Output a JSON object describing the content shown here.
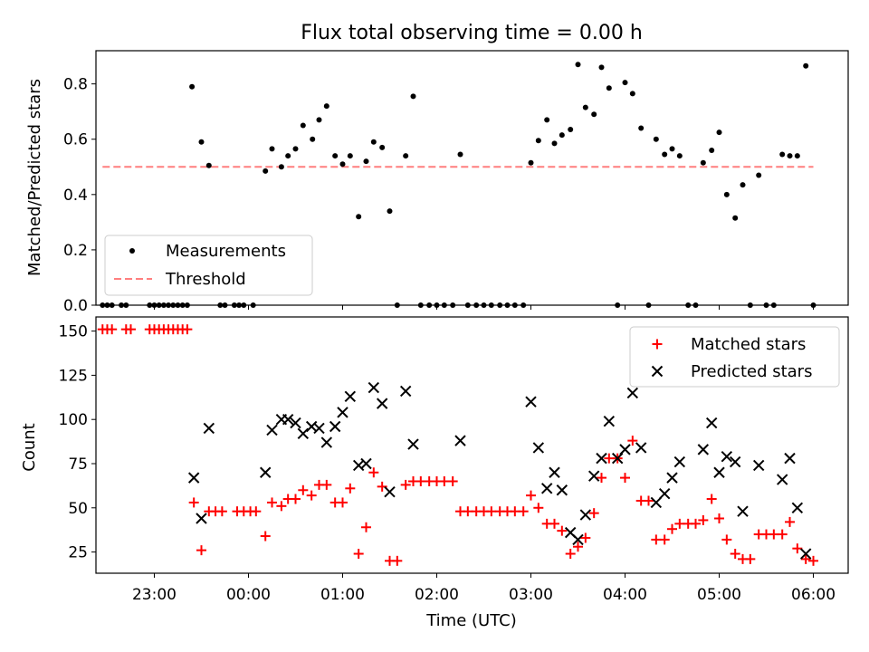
{
  "chart_data": [
    {
      "type": "scatter",
      "title": "Flux total observing time = 0.00 h",
      "ylabel": "Matched/Predicted stars",
      "xlabel": "",
      "xlim": [
        -1.62,
        6.37
      ],
      "ylim": [
        0,
        0.92
      ],
      "yticks": [
        0.0,
        0.2,
        0.4,
        0.6,
        0.8
      ],
      "ytick_labels": [
        "0.0",
        "0.2",
        "0.4",
        "0.6",
        "0.8"
      ],
      "legend": {
        "position": "lower-left",
        "entries": [
          "Measurements",
          "Threshold"
        ]
      },
      "colors": {
        "Measurements": "#000000",
        "Threshold": "#ff7f7f"
      },
      "threshold": {
        "name": "Threshold",
        "value": 0.5,
        "x_range": [
          -1.55,
          6.0
        ]
      },
      "series": [
        {
          "name": "Measurements",
          "points": [
            [
              -1.55,
              0
            ],
            [
              -1.5,
              0
            ],
            [
              -1.45,
              0
            ],
            [
              -1.35,
              0
            ],
            [
              -1.3,
              0
            ],
            [
              -1.05,
              0
            ],
            [
              -1.0,
              0
            ],
            [
              -0.95,
              0
            ],
            [
              -0.9,
              0
            ],
            [
              -0.85,
              0
            ],
            [
              -0.8,
              0
            ],
            [
              -0.75,
              0
            ],
            [
              -0.7,
              0
            ],
            [
              -0.65,
              0
            ],
            [
              -0.6,
              0.79
            ],
            [
              -0.5,
              0.59
            ],
            [
              -0.42,
              0.505
            ],
            [
              -0.3,
              0
            ],
            [
              -0.25,
              0
            ],
            [
              -0.15,
              0
            ],
            [
              -0.1,
              0
            ],
            [
              -0.05,
              0
            ],
            [
              0.05,
              0
            ],
            [
              0.18,
              0.485
            ],
            [
              0.25,
              0.565
            ],
            [
              0.35,
              0.5
            ],
            [
              0.42,
              0.54
            ],
            [
              0.5,
              0.565
            ],
            [
              0.58,
              0.65
            ],
            [
              0.68,
              0.6
            ],
            [
              0.75,
              0.67
            ],
            [
              0.83,
              0.72
            ],
            [
              0.92,
              0.54
            ],
            [
              1.0,
              0.51
            ],
            [
              1.08,
              0.54
            ],
            [
              1.17,
              0.32
            ],
            [
              1.25,
              0.52
            ],
            [
              1.33,
              0.59
            ],
            [
              1.42,
              0.57
            ],
            [
              1.5,
              0.34
            ],
            [
              1.58,
              0
            ],
            [
              1.67,
              0.54
            ],
            [
              1.75,
              0.755
            ],
            [
              1.83,
              0
            ],
            [
              1.92,
              0
            ],
            [
              2.0,
              0
            ],
            [
              2.08,
              0
            ],
            [
              2.17,
              0
            ],
            [
              2.25,
              0.545
            ],
            [
              2.33,
              0
            ],
            [
              2.42,
              0
            ],
            [
              2.5,
              0
            ],
            [
              2.58,
              0
            ],
            [
              2.67,
              0
            ],
            [
              2.75,
              0
            ],
            [
              2.83,
              0
            ],
            [
              2.92,
              0
            ],
            [
              3.0,
              0.515
            ],
            [
              3.08,
              0.595
            ],
            [
              3.17,
              0.67
            ],
            [
              3.25,
              0.585
            ],
            [
              3.33,
              0.615
            ],
            [
              3.42,
              0.635
            ],
            [
              3.5,
              0.87
            ],
            [
              3.58,
              0.715
            ],
            [
              3.67,
              0.69
            ],
            [
              3.75,
              0.86
            ],
            [
              3.83,
              0.785
            ],
            [
              3.92,
              0
            ],
            [
              4.0,
              0.805
            ],
            [
              4.08,
              0.765
            ],
            [
              4.17,
              0.64
            ],
            [
              4.25,
              0
            ],
            [
              4.33,
              0.6
            ],
            [
              4.42,
              0.545
            ],
            [
              4.5,
              0.565
            ],
            [
              4.58,
              0.54
            ],
            [
              4.67,
              0
            ],
            [
              4.75,
              0
            ],
            [
              4.83,
              0.515
            ],
            [
              4.92,
              0.56
            ],
            [
              5.0,
              0.625
            ],
            [
              5.08,
              0.4
            ],
            [
              5.17,
              0.315
            ],
            [
              5.25,
              0.435
            ],
            [
              5.33,
              0
            ],
            [
              5.42,
              0.47
            ],
            [
              5.5,
              0
            ],
            [
              5.58,
              0
            ],
            [
              5.67,
              0.545
            ],
            [
              5.75,
              0.54
            ],
            [
              5.83,
              0.54
            ],
            [
              5.92,
              0.865
            ],
            [
              6.0,
              0
            ]
          ]
        }
      ]
    },
    {
      "type": "scatter",
      "title": "",
      "xlabel": "Time (UTC)",
      "ylabel": "Count",
      "xlim": [
        -1.62,
        6.37
      ],
      "ylim": [
        13,
        158
      ],
      "yticks": [
        25,
        50,
        75,
        100,
        125,
        150
      ],
      "ytick_labels": [
        "25",
        "50",
        "75",
        "100",
        "125",
        "150"
      ],
      "xticks": [
        -1,
        0,
        1,
        2,
        3,
        4,
        5,
        6
      ],
      "xtick_labels": [
        "23:00",
        "00:00",
        "01:00",
        "02:00",
        "03:00",
        "04:00",
        "05:00",
        "06:00"
      ],
      "legend": {
        "position": "upper-right",
        "entries": [
          "Matched stars",
          "Predicted stars"
        ]
      },
      "colors": {
        "Matched stars": "#ff0000",
        "Predicted stars": "#000000"
      },
      "series": [
        {
          "name": "Matched stars",
          "marker": "plus",
          "points": [
            [
              -1.55,
              151
            ],
            [
              -1.5,
              151
            ],
            [
              -1.45,
              151
            ],
            [
              -1.3,
              151
            ],
            [
              -1.25,
              151
            ],
            [
              -1.05,
              151
            ],
            [
              -1.0,
              151
            ],
            [
              -0.95,
              151
            ],
            [
              -0.9,
              151
            ],
            [
              -0.85,
              151
            ],
            [
              -0.8,
              151
            ],
            [
              -0.75,
              151
            ],
            [
              -0.7,
              151
            ],
            [
              -0.65,
              151
            ],
            [
              -0.58,
              53
            ],
            [
              -0.5,
              26
            ],
            [
              -0.42,
              48
            ],
            [
              -0.35,
              48
            ],
            [
              -0.28,
              48
            ],
            [
              -0.12,
              48
            ],
            [
              -0.05,
              48
            ],
            [
              0.02,
              48
            ],
            [
              0.08,
              48
            ],
            [
              0.18,
              34
            ],
            [
              0.25,
              53
            ],
            [
              0.35,
              51
            ],
            [
              0.42,
              55
            ],
            [
              0.5,
              55
            ],
            [
              0.58,
              60
            ],
            [
              0.67,
              57
            ],
            [
              0.75,
              63
            ],
            [
              0.83,
              63
            ],
            [
              0.92,
              53
            ],
            [
              1.0,
              53
            ],
            [
              1.08,
              61
            ],
            [
              1.17,
              24
            ],
            [
              1.25,
              39
            ],
            [
              1.33,
              70
            ],
            [
              1.42,
              62
            ],
            [
              1.5,
              20
            ],
            [
              1.58,
              20
            ],
            [
              1.67,
              63
            ],
            [
              1.75,
              65
            ],
            [
              1.83,
              65
            ],
            [
              1.92,
              65
            ],
            [
              2.0,
              65
            ],
            [
              2.08,
              65
            ],
            [
              2.17,
              65
            ],
            [
              2.25,
              48
            ],
            [
              2.33,
              48
            ],
            [
              2.42,
              48
            ],
            [
              2.5,
              48
            ],
            [
              2.58,
              48
            ],
            [
              2.67,
              48
            ],
            [
              2.75,
              48
            ],
            [
              2.83,
              48
            ],
            [
              2.92,
              48
            ],
            [
              3.0,
              57
            ],
            [
              3.08,
              50
            ],
            [
              3.17,
              41
            ],
            [
              3.25,
              41
            ],
            [
              3.33,
              37
            ],
            [
              3.42,
              24
            ],
            [
              3.5,
              28
            ],
            [
              3.58,
              33
            ],
            [
              3.67,
              47
            ],
            [
              3.75,
              67
            ],
            [
              3.83,
              78
            ],
            [
              3.92,
              78
            ],
            [
              4.0,
              67
            ],
            [
              4.08,
              88
            ],
            [
              4.17,
              54
            ],
            [
              4.25,
              54
            ],
            [
              4.33,
              32
            ],
            [
              4.42,
              32
            ],
            [
              4.5,
              38
            ],
            [
              4.58,
              41
            ],
            [
              4.67,
              41
            ],
            [
              4.75,
              41
            ],
            [
              4.83,
              43
            ],
            [
              4.92,
              55
            ],
            [
              5.0,
              44
            ],
            [
              5.08,
              32
            ],
            [
              5.17,
              24
            ],
            [
              5.25,
              21
            ],
            [
              5.33,
              21
            ],
            [
              5.42,
              35
            ],
            [
              5.5,
              35
            ],
            [
              5.58,
              35
            ],
            [
              5.67,
              35
            ],
            [
              5.75,
              42
            ],
            [
              5.83,
              27
            ],
            [
              5.92,
              21
            ],
            [
              6.0,
              20
            ]
          ]
        },
        {
          "name": "Predicted stars",
          "marker": "x",
          "points": [
            [
              -0.58,
              67
            ],
            [
              -0.5,
              44
            ],
            [
              -0.42,
              95
            ],
            [
              0.18,
              70
            ],
            [
              0.25,
              94
            ],
            [
              0.35,
              100
            ],
            [
              0.42,
              100
            ],
            [
              0.5,
              98
            ],
            [
              0.58,
              92
            ],
            [
              0.67,
              96
            ],
            [
              0.75,
              95
            ],
            [
              0.83,
              87
            ],
            [
              0.92,
              96
            ],
            [
              1.0,
              104
            ],
            [
              1.08,
              113
            ],
            [
              1.17,
              74
            ],
            [
              1.25,
              75
            ],
            [
              1.33,
              118
            ],
            [
              1.42,
              109
            ],
            [
              1.5,
              59
            ],
            [
              1.67,
              116
            ],
            [
              1.75,
              86
            ],
            [
              2.25,
              88
            ],
            [
              3.0,
              110
            ],
            [
              3.08,
              84
            ],
            [
              3.17,
              61
            ],
            [
              3.25,
              70
            ],
            [
              3.33,
              60
            ],
            [
              3.42,
              36
            ],
            [
              3.5,
              32
            ],
            [
              3.58,
              46
            ],
            [
              3.67,
              68
            ],
            [
              3.75,
              78
            ],
            [
              3.83,
              99
            ],
            [
              3.92,
              78
            ],
            [
              4.0,
              83
            ],
            [
              4.08,
              115
            ],
            [
              4.17,
              84
            ],
            [
              4.33,
              53
            ],
            [
              4.42,
              58
            ],
            [
              4.5,
              67
            ],
            [
              4.58,
              76
            ],
            [
              4.83,
              83
            ],
            [
              4.92,
              98
            ],
            [
              5.0,
              70
            ],
            [
              5.08,
              79
            ],
            [
              5.17,
              76
            ],
            [
              5.25,
              48
            ],
            [
              5.42,
              74
            ],
            [
              5.67,
              66
            ],
            [
              5.75,
              78
            ],
            [
              5.83,
              50
            ],
            [
              5.92,
              24
            ]
          ]
        }
      ]
    }
  ]
}
